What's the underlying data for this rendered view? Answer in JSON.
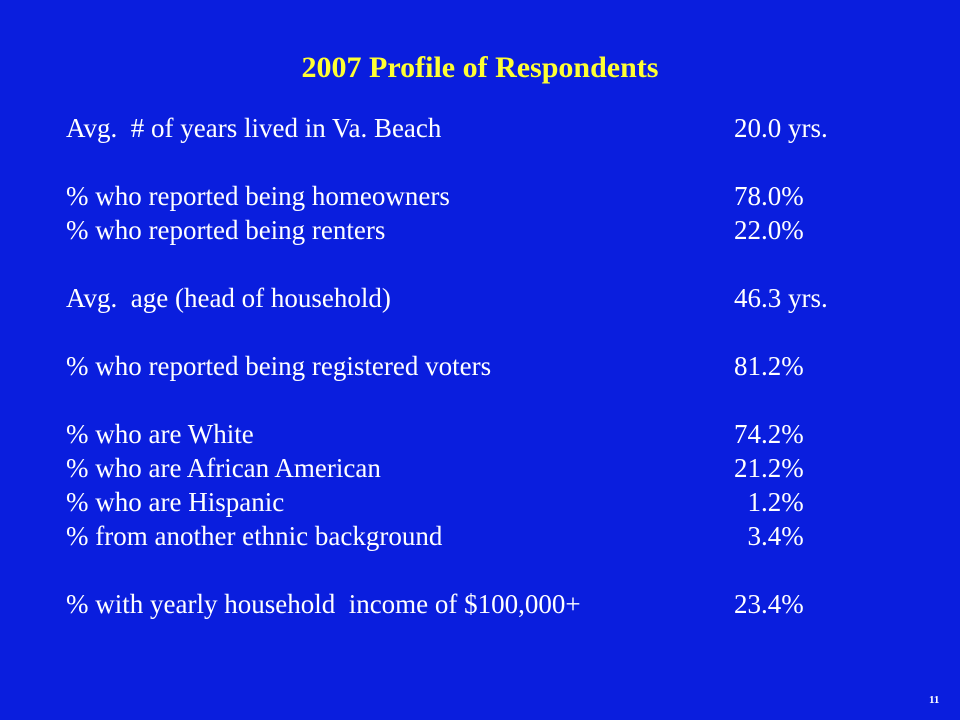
{
  "title": "2007 Profile of Respondents",
  "rows": [
    {
      "label": "Avg.  # of years lived in Va. Beach",
      "value": "20.0 yrs."
    },
    {
      "label": "% who reported being homeowners",
      "value": "78.0%"
    },
    {
      "label": "% who reported being renters",
      "value": "22.0%"
    },
    {
      "label": "Avg.  age (head of household)",
      "value": "46.3 yrs."
    },
    {
      "label": "% who reported being registered voters",
      "value": "81.2%"
    },
    {
      "label": "% who are White",
      "value": "74.2%"
    },
    {
      "label": "% who are African American",
      "value": "21.2%"
    },
    {
      "label": "% who are Hispanic",
      "value": "  1.2%"
    },
    {
      "label": "% from another ethnic background",
      "value": "  3.4%"
    },
    {
      "label": "% with yearly household  income of $100,000+",
      "value": "23.4%"
    }
  ],
  "page_number": "11",
  "colors": {
    "background": "#0A1EDE",
    "title": "#FFFF33",
    "text": "#FFFFFF"
  }
}
